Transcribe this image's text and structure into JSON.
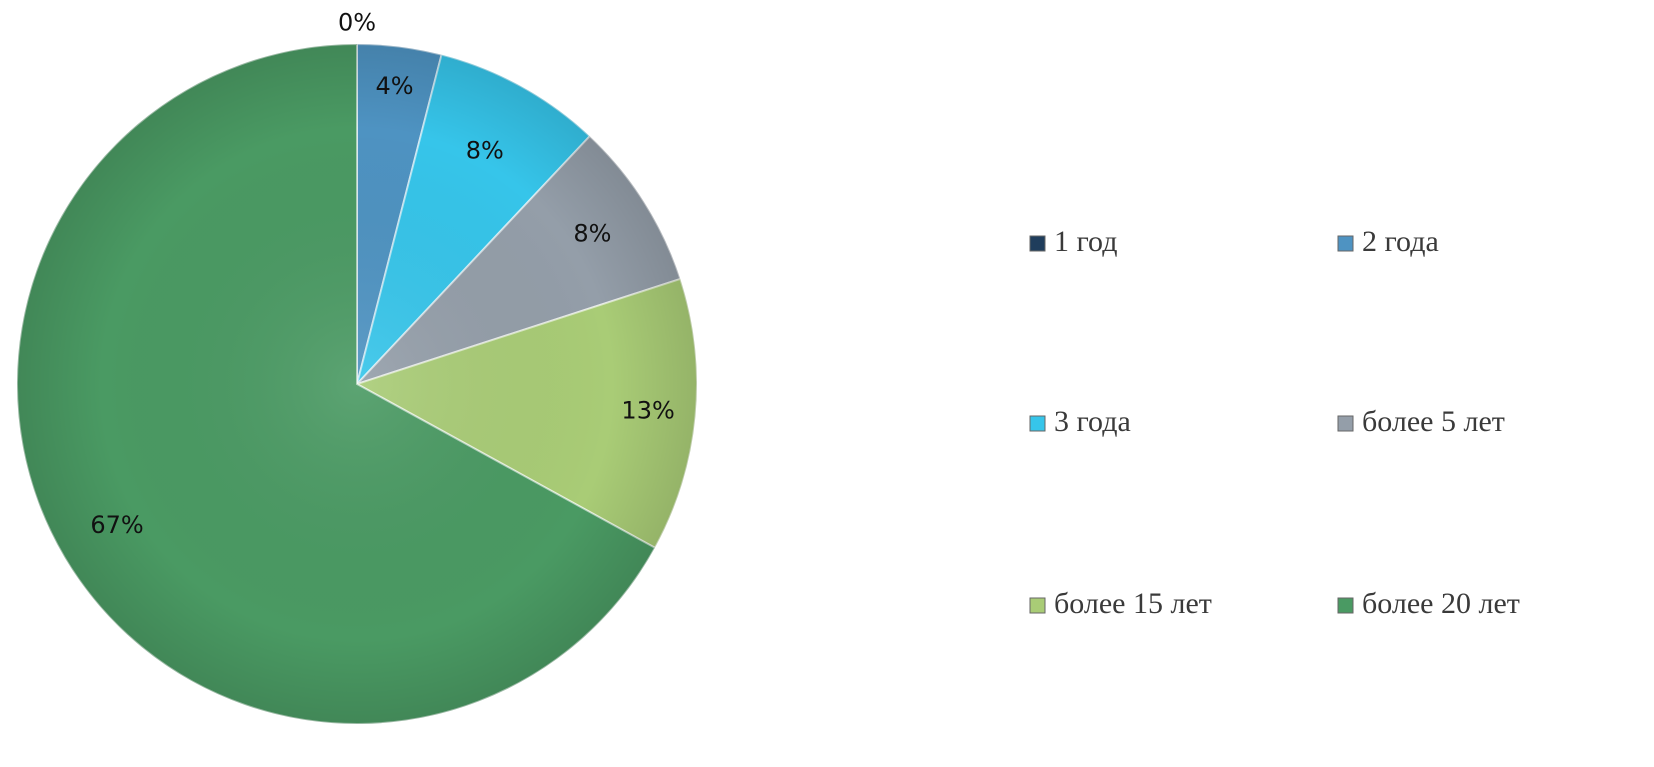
{
  "chart_data": {
    "type": "pie",
    "categories": [
      "1 год",
      "2 года",
      "3 года",
      "более 5 лет",
      "более 15 лет",
      "более 20 лет"
    ],
    "values": [
      0,
      4,
      8,
      8,
      13,
      67
    ],
    "labels": [
      "0%",
      "4%",
      "8%",
      "8%",
      "13%",
      "67%"
    ],
    "colors": [
      "#1f3d5c",
      "#4e93c2",
      "#36c5ea",
      "#949ea9",
      "#a9cc76",
      "#4a9a63"
    ],
    "legend_position": "right",
    "title": ""
  }
}
